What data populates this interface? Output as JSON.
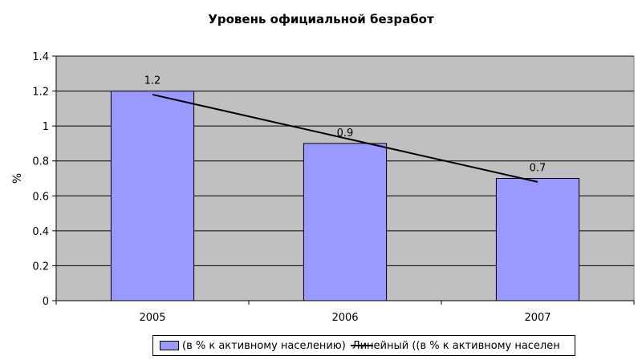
{
  "chart_data": {
    "type": "bar",
    "title": "Уровень официальной безработ",
    "ylabel": "%",
    "xlabel": "",
    "categories": [
      "2005",
      "2006",
      "2007"
    ],
    "series": [
      {
        "name": "(в % к активному населению)",
        "values": [
          1.2,
          0.9,
          0.7
        ],
        "color": "#9999ff",
        "data_labels": [
          "1.2",
          "0.9",
          "0.7"
        ]
      }
    ],
    "trendline": {
      "name": "Линейный ((в % к активному населен",
      "type": "linear",
      "values": [
        1.18,
        0.93,
        0.68
      ],
      "color": "#000000"
    },
    "ylim": [
      0,
      1.4
    ],
    "yticks": [
      "0",
      "0.2",
      "0.4",
      "0.6",
      "0.8",
      "1",
      "1.2",
      "1.4"
    ],
    "grid": true,
    "plot_background": "#c0c0c0",
    "legend_position": "bottom"
  }
}
